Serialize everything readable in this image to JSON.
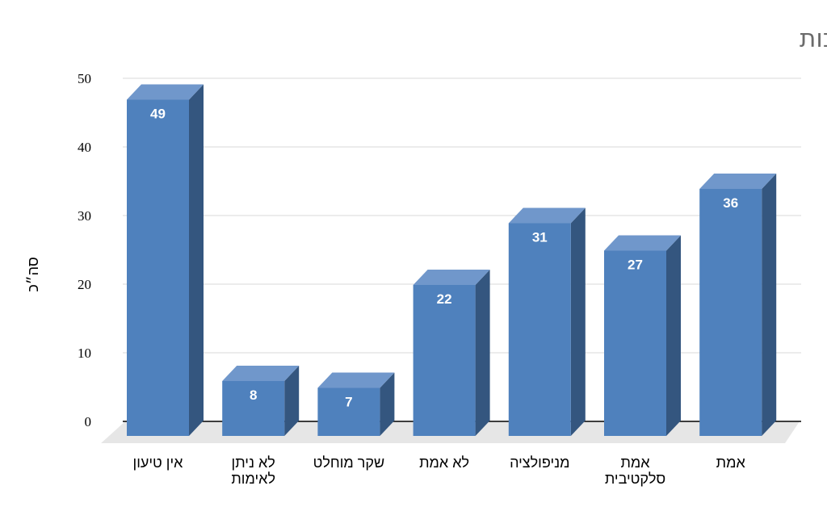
{
  "chart_data": {
    "type": "bar",
    "title": "מידת האמיתות של הטיעונים בתגובות",
    "ylabel": "סה״כ",
    "xlabel": "",
    "ylim": [
      0,
      50
    ],
    "yticks": [
      0,
      10,
      20,
      30,
      40,
      50
    ],
    "grid": true,
    "categories": [
      [
        "אין טיעון"
      ],
      [
        "לא ניתן",
        "לאימות"
      ],
      [
        "שקר מוחלט"
      ],
      [
        "לא אמת"
      ],
      [
        "מניפולציה"
      ],
      [
        "אמת",
        "סלקטיבית"
      ],
      [
        "אמת"
      ]
    ],
    "values": [
      49,
      8,
      7,
      22,
      31,
      27,
      36
    ],
    "colors": {
      "front": "#4f81bd",
      "top": "#7097cb",
      "side": "#34567f",
      "floor": "#e6e6e6",
      "grid": "#d9d9d9"
    }
  }
}
